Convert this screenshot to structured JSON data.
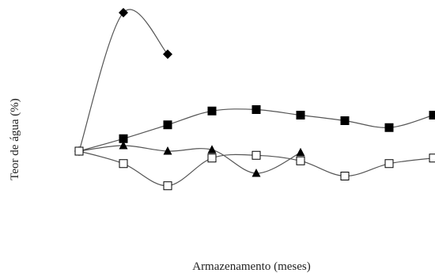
{
  "chart_data": {
    "type": "line",
    "title": "",
    "xlabel": "Armazenamento  (meses)",
    "ylabel": "Teor de água (%)",
    "grid": false,
    "legend": "none",
    "x_ticks_shown": false,
    "y_ticks_shown": false,
    "series": [
      {
        "marker": "diamond-filled",
        "x": [
          0,
          1,
          2
        ],
        "y": [
          0,
          100,
          70
        ]
      },
      {
        "marker": "square-filled",
        "x": [
          0,
          1,
          2,
          3,
          4,
          5,
          6,
          7,
          8
        ],
        "y": [
          0,
          9,
          19,
          29,
          30,
          26,
          22,
          17,
          26
        ]
      },
      {
        "marker": "triangle-filled",
        "x": [
          0,
          1,
          2,
          3,
          4,
          5
        ],
        "y": [
          0,
          4,
          0,
          1,
          -16,
          -1
        ]
      },
      {
        "marker": "square-open",
        "x": [
          0,
          1,
          2,
          3,
          4,
          5,
          6,
          7,
          8
        ],
        "y": [
          0,
          -9,
          -25,
          -5,
          -3,
          -7,
          -18,
          -9,
          -5
        ]
      }
    ],
    "colors": {
      "line": "#555555",
      "marker_fill": "#000000",
      "marker_open_fill": "#ffffff",
      "text": "#222222"
    }
  }
}
